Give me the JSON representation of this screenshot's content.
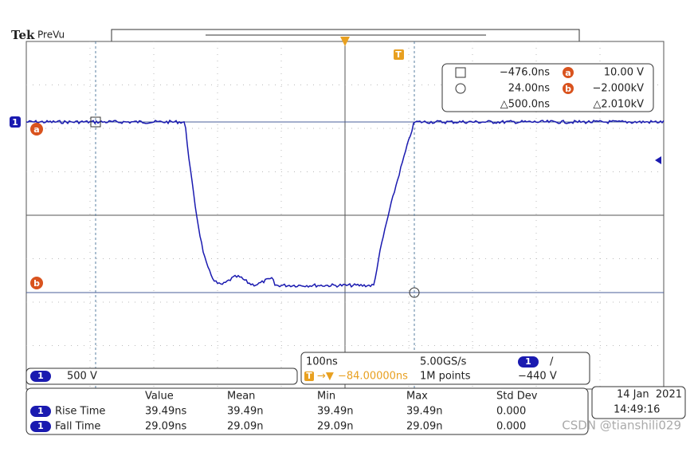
{
  "header": {
    "brand": "Tek",
    "mode": "PreVu"
  },
  "markers": {
    "channel": "1",
    "ref_a": "a",
    "ref_b": "b",
    "trigger": "T"
  },
  "cursors": {
    "time_1": "−476.0ns",
    "time_2": "24.00ns",
    "time_delta": "△500.0ns",
    "ref_a": "a",
    "ref_b": "b",
    "value_a": "10.00 V",
    "value_b": "−2.000kV",
    "value_delta": "△2.010kV"
  },
  "channel": {
    "badge": "1",
    "scale": "500 V"
  },
  "acquisition": {
    "time_scale": "100ns",
    "sample_rate": "5.00GS/s",
    "trigger_badge": "T",
    "trigger_position": "−84.00000ns",
    "record_length": "1M points",
    "trigger_channel": "1",
    "trigger_slope": "/",
    "trigger_level": "−440 V"
  },
  "measurements": {
    "columns": [
      "Value",
      "Mean",
      "Min",
      "Max",
      "Std Dev"
    ],
    "rows": [
      {
        "badge": "1",
        "name": "Rise Time",
        "cells": [
          "39.49ns",
          "39.49n",
          "39.49n",
          "39.49n",
          "0.000"
        ]
      },
      {
        "badge": "1",
        "name": "Fall Time",
        "cells": [
          "29.09ns",
          "29.09n",
          "29.09n",
          "29.09n",
          "0.000"
        ]
      }
    ]
  },
  "clock": {
    "date": "14 Jan  2021",
    "time": "14:49:16"
  },
  "watermark": "CSDN @tianshili029"
}
